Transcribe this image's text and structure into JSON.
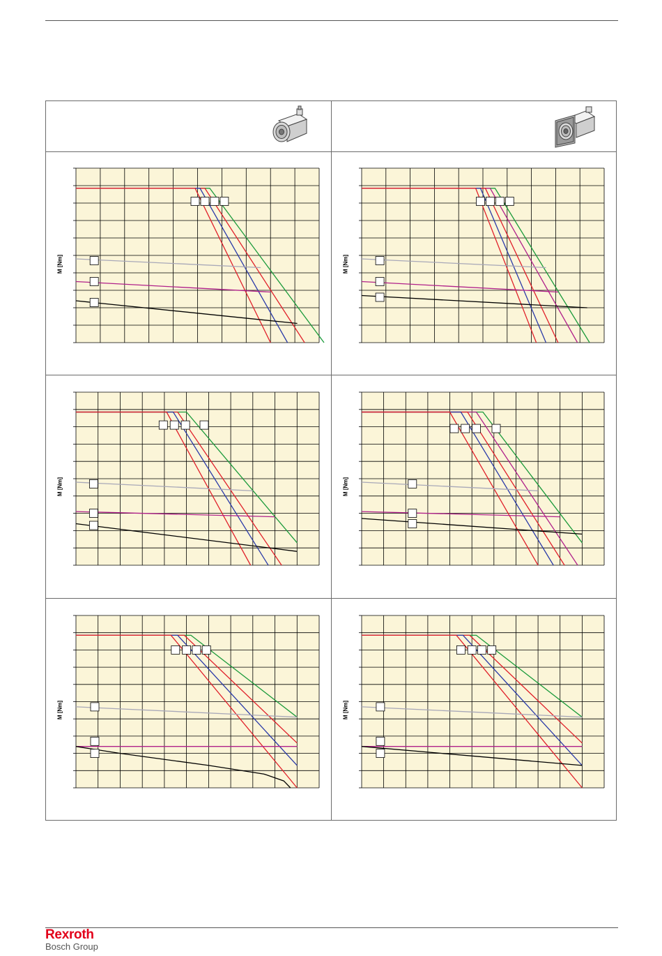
{
  "page": {
    "brand": "Rexroth",
    "brand_sub": "Bosch Group"
  },
  "icons": {
    "left": "motor-icon",
    "right": "flange-motor-icon"
  },
  "colors": {
    "plot_bg": "#fbf5d8",
    "grid": "#000000",
    "green": "#1a9a3a",
    "red": "#e0202a",
    "blue": "#2a3aa8",
    "gray": "#a8a8b8",
    "magenta": "#b0208a",
    "black": "#000000",
    "brand": "#e2001a"
  },
  "chart_data": [
    {
      "type": "line",
      "ylabel": "M [Nm]",
      "xlim": [
        0,
        10
      ],
      "ylim": [
        0,
        10
      ],
      "series": [
        {
          "color": "green",
          "x": [
            0,
            5.5,
            10.2
          ],
          "y": [
            8.85,
            8.85,
            0
          ]
        },
        {
          "color": "red",
          "x": [
            0,
            5.3,
            9.4
          ],
          "y": [
            8.85,
            8.85,
            0
          ]
        },
        {
          "color": "blue",
          "x": [
            0,
            5.1,
            8.7
          ],
          "y": [
            8.85,
            8.85,
            0
          ]
        },
        {
          "color": "red",
          "x": [
            0,
            4.9,
            8.0
          ],
          "y": [
            8.85,
            8.85,
            0
          ]
        },
        {
          "color": "gray",
          "x": [
            0,
            7.6
          ],
          "y": [
            4.8,
            4.3
          ]
        },
        {
          "color": "magenta",
          "x": [
            0,
            8.0
          ],
          "y": [
            3.5,
            2.9
          ]
        },
        {
          "color": "black",
          "x": [
            0,
            9.1
          ],
          "y": [
            2.4,
            1.1
          ]
        }
      ],
      "tags_top": [
        [
          4.9,
          8.1
        ],
        [
          5.3,
          8.1
        ],
        [
          5.7,
          8.1
        ],
        [
          6.1,
          8.1
        ]
      ],
      "tags_left": [
        [
          0.75,
          4.7
        ],
        [
          0.75,
          3.5
        ],
        [
          0.75,
          2.3
        ]
      ]
    },
    {
      "type": "line",
      "ylabel": "M [Nm]",
      "xlim": [
        0,
        10
      ],
      "ylim": [
        0,
        10
      ],
      "series": [
        {
          "color": "green",
          "x": [
            0,
            5.5,
            9.4
          ],
          "y": [
            8.85,
            8.85,
            0
          ]
        },
        {
          "color": "magenta",
          "x": [
            0,
            5.3,
            8.9
          ],
          "y": [
            8.85,
            8.85,
            0
          ]
        },
        {
          "color": "red",
          "x": [
            0,
            5.1,
            8.1
          ],
          "y": [
            8.85,
            8.85,
            0
          ]
        },
        {
          "color": "blue",
          "x": [
            0,
            4.9,
            7.6
          ],
          "y": [
            8.85,
            8.85,
            0
          ]
        },
        {
          "color": "red",
          "x": [
            0,
            4.7,
            7.2
          ],
          "y": [
            8.85,
            8.85,
            0
          ]
        },
        {
          "color": "gray",
          "x": [
            0,
            7.6
          ],
          "y": [
            4.8,
            4.3
          ]
        },
        {
          "color": "magenta",
          "x": [
            0,
            8.1
          ],
          "y": [
            3.5,
            2.9
          ]
        },
        {
          "color": "black",
          "x": [
            0,
            9.3
          ],
          "y": [
            2.7,
            2.0
          ]
        }
      ],
      "tags_top": [
        [
          4.9,
          8.1
        ],
        [
          5.3,
          8.1
        ],
        [
          5.7,
          8.1
        ],
        [
          6.1,
          8.1
        ]
      ],
      "tags_left": [
        [
          0.75,
          4.7
        ],
        [
          0.75,
          3.5
        ],
        [
          0.75,
          2.6
        ]
      ]
    },
    {
      "type": "line",
      "ylabel": "M [Nm]",
      "xlim": [
        0,
        11
      ],
      "ylim": [
        0,
        10
      ],
      "series": [
        {
          "color": "green",
          "x": [
            0,
            5.0,
            10.0
          ],
          "y": [
            8.85,
            8.85,
            1.3
          ]
        },
        {
          "color": "red",
          "x": [
            0,
            4.6,
            9.3
          ],
          "y": [
            8.85,
            8.85,
            0
          ]
        },
        {
          "color": "blue",
          "x": [
            0,
            4.4,
            8.7
          ],
          "y": [
            8.85,
            8.85,
            0
          ]
        },
        {
          "color": "red",
          "x": [
            0,
            4.1,
            7.9
          ],
          "y": [
            8.85,
            8.85,
            0
          ]
        },
        {
          "color": "gray",
          "x": [
            0,
            8.0
          ],
          "y": [
            4.8,
            4.3
          ]
        },
        {
          "color": "magenta",
          "x": [
            0,
            9.0
          ],
          "y": [
            3.1,
            2.8
          ]
        },
        {
          "color": "black",
          "x": [
            0,
            10.0
          ],
          "y": [
            2.4,
            0.8
          ]
        }
      ],
      "tags_top": [
        [
          3.95,
          8.1
        ],
        [
          4.45,
          8.1
        ],
        [
          4.95,
          8.1
        ],
        [
          5.8,
          8.1
        ]
      ],
      "tags_left": [
        [
          0.8,
          4.7
        ],
        [
          0.8,
          3.0
        ],
        [
          0.8,
          2.3
        ]
      ]
    },
    {
      "type": "line",
      "ylabel": "M [Nm]",
      "xlim": [
        0,
        11
      ],
      "ylim": [
        0,
        10
      ],
      "series": [
        {
          "color": "green",
          "x": [
            0,
            5.5,
            10.0
          ],
          "y": [
            8.85,
            8.85,
            1.3
          ]
        },
        {
          "color": "magenta",
          "x": [
            0,
            5.2,
            9.8
          ],
          "y": [
            8.85,
            8.85,
            0
          ]
        },
        {
          "color": "red",
          "x": [
            0,
            4.8,
            9.2
          ],
          "y": [
            8.85,
            8.85,
            0
          ]
        },
        {
          "color": "blue",
          "x": [
            0,
            4.5,
            8.7
          ],
          "y": [
            8.85,
            8.85,
            0
          ]
        },
        {
          "color": "red",
          "x": [
            0,
            4.0,
            8.0
          ],
          "y": [
            8.85,
            8.85,
            0
          ]
        },
        {
          "color": "gray",
          "x": [
            0,
            8.0
          ],
          "y": [
            4.8,
            4.3
          ]
        },
        {
          "color": "magenta",
          "x": [
            0,
            9.0
          ],
          "y": [
            3.1,
            2.8
          ]
        },
        {
          "color": "black",
          "x": [
            0,
            10.0
          ],
          "y": [
            2.7,
            1.8
          ]
        }
      ],
      "tags_top": [
        [
          4.2,
          7.9
        ],
        [
          4.7,
          7.9
        ],
        [
          5.2,
          7.9
        ],
        [
          6.1,
          7.9
        ]
      ],
      "tags_left": [
        [
          2.3,
          4.7
        ],
        [
          2.3,
          3.0
        ],
        [
          2.3,
          2.4
        ]
      ]
    },
    {
      "type": "line",
      "ylabel": "M [Nm]",
      "xlim": [
        0,
        11
      ],
      "ylim": [
        0,
        10
      ],
      "series": [
        {
          "color": "green",
          "x": [
            0,
            5.2,
            10.0
          ],
          "y": [
            8.85,
            8.85,
            4.1
          ]
        },
        {
          "color": "red",
          "x": [
            0,
            4.9,
            10.0
          ],
          "y": [
            8.85,
            8.85,
            2.6
          ]
        },
        {
          "color": "blue",
          "x": [
            0,
            4.6,
            10.0
          ],
          "y": [
            8.85,
            8.85,
            1.3
          ]
        },
        {
          "color": "red",
          "x": [
            0,
            4.3,
            10.0
          ],
          "y": [
            8.85,
            8.85,
            0
          ]
        },
        {
          "color": "gray",
          "x": [
            0,
            10.0
          ],
          "y": [
            4.7,
            4.1
          ]
        },
        {
          "color": "magenta",
          "x": [
            0,
            10.0
          ],
          "y": [
            2.4,
            2.4
          ]
        },
        {
          "color": "black",
          "x": [
            0,
            2.0,
            6.0,
            8.5,
            9.4,
            9.7
          ],
          "y": [
            2.4,
            2.0,
            1.3,
            0.8,
            0.4,
            0
          ]
        }
      ],
      "tags_top": [
        [
          4.5,
          8.0
        ],
        [
          5.0,
          8.0
        ],
        [
          5.45,
          8.0
        ],
        [
          5.9,
          8.0
        ]
      ],
      "tags_left": [
        [
          0.85,
          4.7
        ],
        [
          0.85,
          2.7
        ],
        [
          0.85,
          2.0
        ]
      ]
    },
    {
      "type": "line",
      "ylabel": "M [Nm]",
      "xlim": [
        0,
        11
      ],
      "ylim": [
        0,
        10
      ],
      "series": [
        {
          "color": "green",
          "x": [
            0,
            5.2,
            10.0
          ],
          "y": [
            8.85,
            8.85,
            4.1
          ]
        },
        {
          "color": "red",
          "x": [
            0,
            4.9,
            10.0
          ],
          "y": [
            8.85,
            8.85,
            2.6
          ]
        },
        {
          "color": "blue",
          "x": [
            0,
            4.6,
            10.0
          ],
          "y": [
            8.85,
            8.85,
            1.3
          ]
        },
        {
          "color": "red",
          "x": [
            0,
            4.3,
            10.0
          ],
          "y": [
            8.85,
            8.85,
            0
          ]
        },
        {
          "color": "gray",
          "x": [
            0,
            10.0
          ],
          "y": [
            4.7,
            4.1
          ]
        },
        {
          "color": "magenta",
          "x": [
            0,
            10.0
          ],
          "y": [
            2.4,
            2.4
          ]
        },
        {
          "color": "black",
          "x": [
            0,
            10.0
          ],
          "y": [
            2.4,
            1.3
          ]
        }
      ],
      "tags_top": [
        [
          4.5,
          8.0
        ],
        [
          5.0,
          8.0
        ],
        [
          5.45,
          8.0
        ],
        [
          5.9,
          8.0
        ]
      ],
      "tags_left": [
        [
          0.85,
          4.7
        ],
        [
          0.85,
          2.7
        ],
        [
          0.85,
          2.0
        ]
      ]
    }
  ]
}
